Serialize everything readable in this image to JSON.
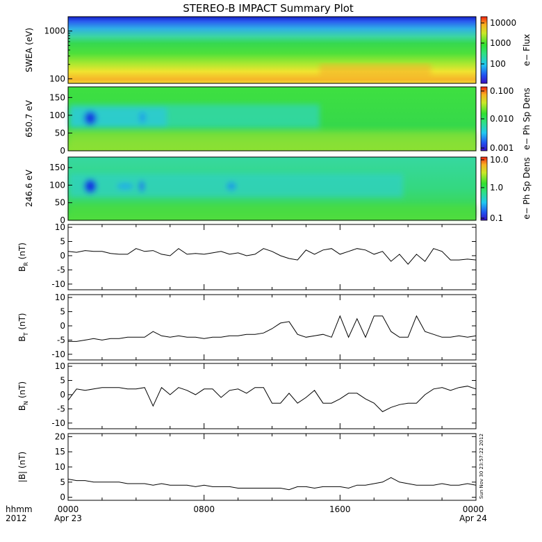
{
  "title": "STEREO-B IMPACT Summary Plot",
  "footer": {
    "label_top": "hhmm",
    "label_bottom": "2012",
    "x_ticks": [
      "0000",
      "0800",
      "1600",
      "0000"
    ],
    "x_dates": [
      "Apr 23",
      "",
      "",
      "Apr 24"
    ],
    "timestamp": "Sun Nov 30 23:57:22 2012"
  },
  "chart_data": [
    {
      "type": "heatmap",
      "ylabel": "SWEA (eV)",
      "y_scale": "log",
      "y_ticks": [
        "1000",
        "100"
      ],
      "colorbar": {
        "label": "e− Flux",
        "ticks": [
          "10000",
          "1000",
          "100"
        ],
        "scale": "log"
      }
    },
    {
      "type": "heatmap",
      "ylabel": "650.7 eV",
      "y_ticks": [
        "150",
        "100",
        "50",
        "0"
      ],
      "ylim": [
        0,
        180
      ],
      "colorbar": {
        "label": "e− Ph Sp Dens",
        "ticks": [
          "0.100",
          "0.010",
          "0.001"
        ],
        "scale": "log"
      }
    },
    {
      "type": "heatmap",
      "ylabel": "246.6 eV",
      "y_ticks": [
        "150",
        "100",
        "50",
        "0"
      ],
      "ylim": [
        0,
        180
      ],
      "colorbar": {
        "label": "e− Ph Sp Dens",
        "ticks": [
          "10.0",
          "1.0",
          "0.1"
        ],
        "scale": "log"
      }
    },
    {
      "type": "line",
      "ylabel": "B",
      "ylabel_sub": "R",
      "ylabel_unit": "(nT)",
      "ylim": [
        -12,
        11
      ],
      "y_ticks": [
        10,
        5,
        0,
        -5,
        -10
      ],
      "x_unit": "hours since 0000 Apr 23",
      "x": [
        0,
        0.5,
        1,
        1.5,
        2,
        2.5,
        3,
        3.5,
        4,
        4.5,
        5,
        5.5,
        6,
        6.5,
        7,
        7.5,
        8,
        8.5,
        9,
        9.5,
        10,
        10.5,
        11,
        11.5,
        12,
        12.5,
        13,
        13.5,
        14,
        14.5,
        15,
        15.5,
        16,
        16.5,
        17,
        17.5,
        18,
        18.5,
        19,
        19.5,
        20,
        20.5,
        21,
        21.5,
        22,
        22.5,
        23,
        23.5,
        24
      ],
      "y": [
        1.5,
        1.2,
        1.8,
        1.5,
        1.5,
        0.8,
        0.5,
        0.5,
        2.5,
        1.5,
        1.8,
        0.5,
        0,
        2.5,
        0.5,
        0.8,
        0.5,
        1.0,
        1.5,
        0.5,
        1.0,
        0,
        0.5,
        2.5,
        1.5,
        0,
        -1,
        -1.5,
        2,
        0.5,
        2,
        2.5,
        0.5,
        1.5,
        2.5,
        2.0,
        0.5,
        1.5,
        -2,
        0.5,
        -3,
        0.5,
        -2,
        2.5,
        1.5,
        -1.5,
        -1.5,
        -1.2,
        -1.5
      ]
    },
    {
      "type": "line",
      "ylabel": "B",
      "ylabel_sub": "T",
      "ylabel_unit": "(nT)",
      "ylim": [
        -12,
        11
      ],
      "y_ticks": [
        10,
        5,
        0,
        -5,
        -10
      ],
      "x_unit": "hours since 0000 Apr 23",
      "x": [
        0,
        0.5,
        1,
        1.5,
        2,
        2.5,
        3,
        3.5,
        4,
        4.5,
        5,
        5.5,
        6,
        6.5,
        7,
        7.5,
        8,
        8.5,
        9,
        9.5,
        10,
        10.5,
        11,
        11.5,
        12,
        12.5,
        13,
        13.5,
        14,
        14.5,
        15,
        15.5,
        16,
        16.5,
        17,
        17.5,
        18,
        18.5,
        19,
        19.5,
        20,
        20.5,
        21,
        21.5,
        22,
        22.5,
        23,
        23.5,
        24
      ],
      "y": [
        -5.5,
        -5.5,
        -5,
        -4.5,
        -5,
        -4.5,
        -4.5,
        -4,
        -4,
        -4,
        -2,
        -3.5,
        -4,
        -3.5,
        -4,
        -4,
        -4.5,
        -4,
        -4,
        -3.5,
        -3.5,
        -3,
        -3,
        -2.5,
        -1,
        1,
        1.5,
        -3,
        -4,
        -3.5,
        -3,
        -4,
        3.5,
        -4,
        2.5,
        -4,
        3.5,
        3.5,
        -2,
        -4,
        -4,
        3.5,
        -2,
        -3,
        -4,
        -4,
        -3.5,
        -4,
        -3.5
      ]
    },
    {
      "type": "line",
      "ylabel": "B",
      "ylabel_sub": "N",
      "ylabel_unit": "(nT)",
      "ylim": [
        -12,
        11
      ],
      "y_ticks": [
        10,
        5,
        0,
        -5,
        -10
      ],
      "x_unit": "hours since 0000 Apr 23",
      "x": [
        0,
        0.5,
        1,
        1.5,
        2,
        2.5,
        3,
        3.5,
        4,
        4.5,
        5,
        5.5,
        6,
        6.5,
        7,
        7.5,
        8,
        8.5,
        9,
        9.5,
        10,
        10.5,
        11,
        11.5,
        12,
        12.5,
        13,
        13.5,
        14,
        14.5,
        15,
        15.5,
        16,
        16.5,
        17,
        17.5,
        18,
        18.5,
        19,
        19.5,
        20,
        20.5,
        21,
        21.5,
        22,
        22.5,
        23,
        23.5,
        24
      ],
      "y": [
        -2,
        2,
        1.5,
        2,
        2.5,
        2.5,
        2.5,
        2.0,
        2,
        2.5,
        -4,
        2.5,
        0,
        2.5,
        1.5,
        0,
        2,
        2,
        -1,
        1.5,
        2,
        0.5,
        2.5,
        2.5,
        -3,
        -3,
        0.5,
        -3,
        -1,
        1.5,
        -3,
        -3,
        -1.5,
        0.5,
        0.5,
        -1.5,
        -3,
        -6,
        -4.5,
        -3.5,
        -3,
        -3,
        0,
        2,
        2.5,
        1.5,
        2.5,
        3.0,
        2
      ]
    },
    {
      "type": "line",
      "ylabel": "|B|",
      "ylabel_unit": "(nT)",
      "ylim": [
        -1,
        21
      ],
      "y_ticks": [
        20,
        15,
        10,
        5,
        0
      ],
      "x_unit": "hours since 0000 Apr 23",
      "x": [
        0,
        0.5,
        1,
        1.5,
        2,
        2.5,
        3,
        3.5,
        4,
        4.5,
        5,
        5.5,
        6,
        6.5,
        7,
        7.5,
        8,
        8.5,
        9,
        9.5,
        10,
        10.5,
        11,
        11.5,
        12,
        12.5,
        13,
        13.5,
        14,
        14.5,
        15,
        15.5,
        16,
        16.5,
        17,
        17.5,
        18,
        18.5,
        19,
        19.5,
        20,
        20.5,
        21,
        21.5,
        22,
        22.5,
        23,
        23.5,
        24
      ],
      "y": [
        6,
        5.5,
        5.5,
        5,
        5,
        5,
        5,
        4.5,
        4.5,
        4.5,
        4,
        4.5,
        4,
        4,
        4,
        3.5,
        4,
        3.5,
        3.5,
        3.5,
        3,
        3,
        3,
        3,
        3,
        3,
        2.5,
        3.5,
        3.5,
        3,
        3.5,
        3.5,
        3.5,
        3,
        4,
        4,
        4.5,
        5,
        6.5,
        5,
        4.5,
        4,
        4,
        4,
        4.5,
        4,
        4,
        4.5,
        4
      ]
    }
  ]
}
